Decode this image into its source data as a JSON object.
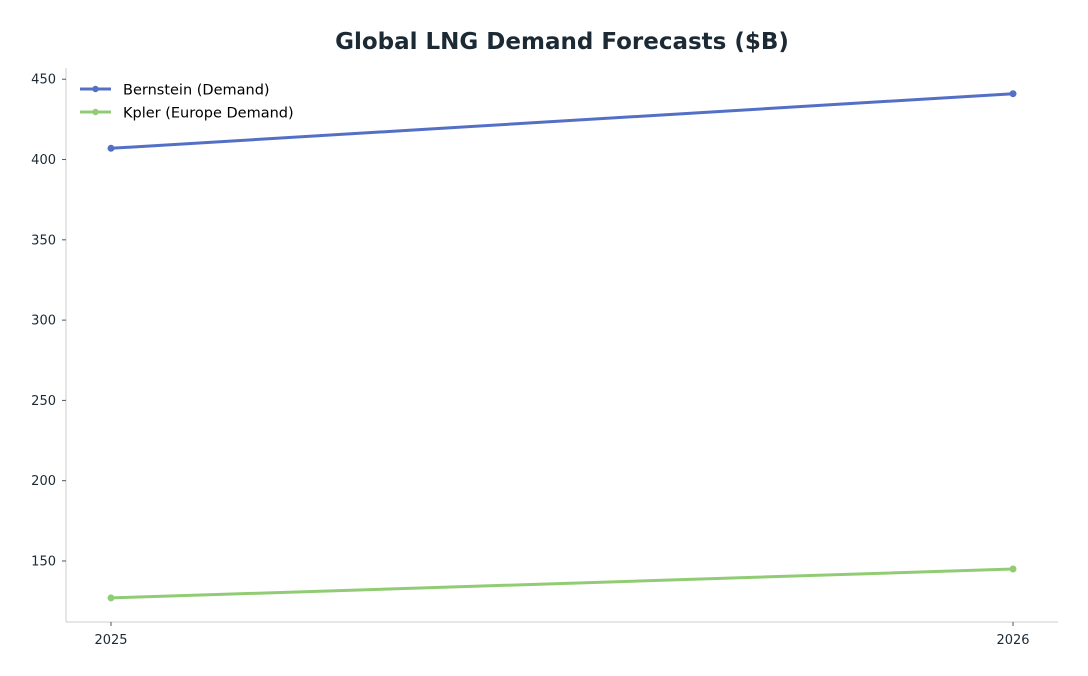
{
  "chart_data": {
    "type": "line",
    "title": "Global LNG Demand Forecasts ($B)",
    "xlabel": "",
    "ylabel": "",
    "x": [
      "2025",
      "2026"
    ],
    "ylim": [
      112,
      457
    ],
    "yticks": [
      150,
      200,
      250,
      300,
      350,
      400,
      450
    ],
    "grid": false,
    "legend_position": "top-left",
    "series": [
      {
        "name": "Bernstein (Demand)",
        "values": [
          407,
          441
        ],
        "color": "#5470c6"
      },
      {
        "name": "Kpler (Europe Demand)",
        "values": [
          127,
          145
        ],
        "color": "#91cc75"
      }
    ]
  }
}
